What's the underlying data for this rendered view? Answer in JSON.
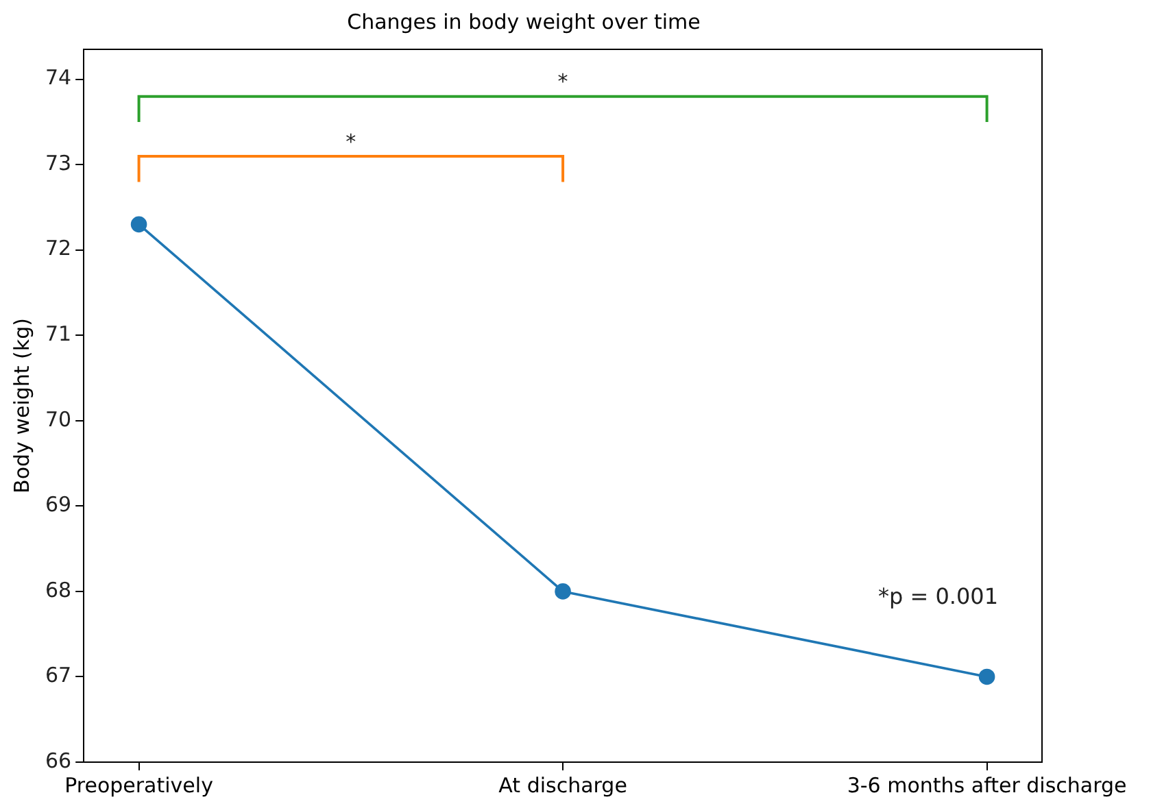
{
  "chart_data": {
    "type": "line",
    "title": "Changes in body weight over time",
    "ylabel": "Body weight (kg)",
    "categories": [
      "Preoperatively",
      "At discharge",
      "3-6 months after discharge"
    ],
    "series": [
      {
        "color": "#1f77b4",
        "values": [
          72.3,
          68.0,
          67.0
        ]
      }
    ],
    "ylim": [
      66,
      74.35
    ],
    "yticks": [
      66,
      67,
      68,
      69,
      70,
      71,
      72,
      73,
      74
    ],
    "marker": "circle",
    "line_style": "solid",
    "grid": false,
    "legend": false,
    "annotations": [
      "*",
      "*",
      "*p = 0.001"
    ]
  }
}
